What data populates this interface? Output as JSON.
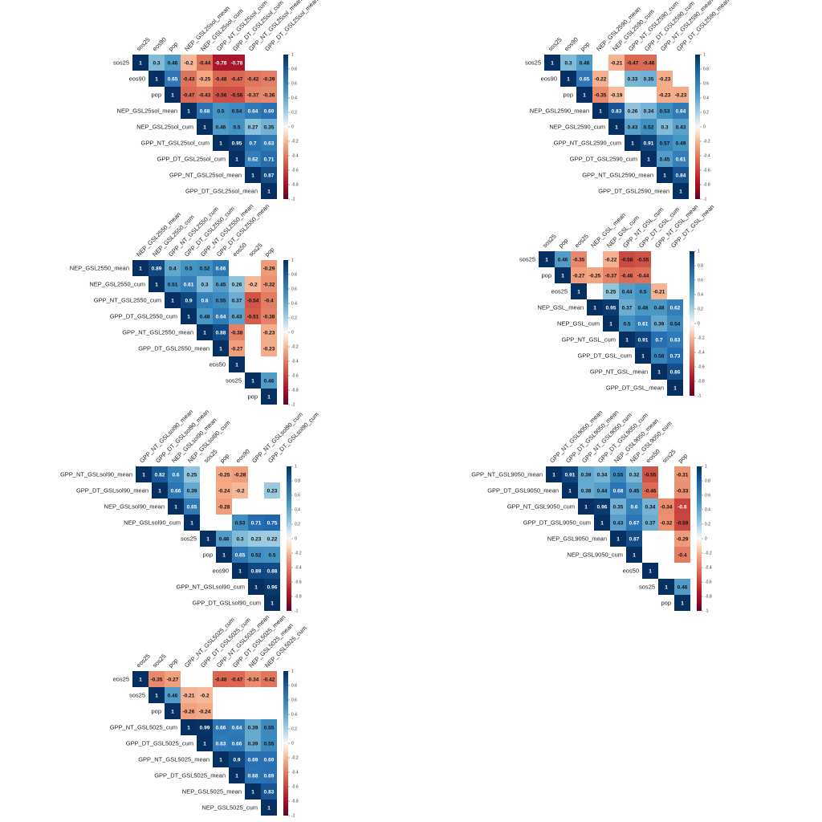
{
  "chart_data": [
    {
      "type": "heatmap",
      "labels": [
        "sos25",
        "eos90",
        "pop",
        "NEP_GSL25sol_mean",
        "NEP_GSL25sol_cum",
        "GPP_NT_GSL25sol_cum",
        "GPP_DT_GSL25sol_cum",
        "GPP_NT_GSL25sol_mean",
        "GPP_DT_GSL25sol_mean"
      ],
      "col_labels": [
        "sos25",
        "eos90",
        "pop",
        "NEP_GSL25sol_mean",
        "NEP_GSL25sol_cum",
        "GPP_NT_GSL25sol_cum",
        "GPP_DT_GSL25sol_cum",
        "GPP_NT_GSL25sol_mean",
        "GPP_DT_GSL25sol_mean"
      ],
      "matrix": [
        [
          1,
          0.3,
          0.46,
          -0.2,
          -0.44,
          -0.78,
          -0.78,
          null,
          null
        ],
        [
          null,
          1,
          0.65,
          -0.43,
          -0.25,
          -0.48,
          -0.47,
          -0.42,
          -0.39
        ],
        [
          null,
          null,
          1,
          -0.47,
          -0.43,
          -0.56,
          -0.56,
          -0.37,
          -0.36
        ],
        [
          null,
          null,
          null,
          1,
          0.68,
          0.5,
          0.54,
          0.64,
          0.69
        ],
        [
          null,
          null,
          null,
          null,
          1,
          0.46,
          0.5,
          0.27,
          0.35
        ],
        [
          null,
          null,
          null,
          null,
          null,
          1,
          0.95,
          0.7,
          0.63
        ],
        [
          null,
          null,
          null,
          null,
          null,
          null,
          1,
          0.62,
          0.71
        ],
        [
          null,
          null,
          null,
          null,
          null,
          null,
          null,
          1,
          0.87
        ],
        [
          null,
          null,
          null,
          null,
          null,
          null,
          null,
          null,
          1
        ]
      ],
      "colorbar_ticks": [
        1,
        0.8,
        0.6,
        0.4,
        0.2,
        0,
        -0.2,
        -0.4,
        -0.6,
        -0.8,
        -1
      ]
    },
    {
      "type": "heatmap",
      "labels": [
        "sos25",
        "eos90",
        "pop",
        "NEP_GSL2590_mean",
        "NEP_GSL2590_cum",
        "GPP_NT_GSL2590_cum",
        "GPP_DT_GSL2590_cum",
        "GPP_NT_GSL2590_mean",
        "GPP_DT_GSL2590_mean"
      ],
      "col_labels": [
        "sos25",
        "eos90",
        "pop",
        "NEP_GSL2590_mean",
        "NEP_GSL2590_cum",
        "GPP_NT_GSL2590_cum",
        "GPP_DT_GSL2590_cum",
        "GPP_NT_GSL2590_mean",
        "GPP_DT_GSL2590_mean"
      ],
      "matrix": [
        [
          1,
          0.3,
          0.46,
          null,
          -0.21,
          -0.47,
          -0.46,
          null,
          null
        ],
        [
          null,
          1,
          0.65,
          -0.22,
          null,
          0.33,
          0.35,
          -0.23,
          null
        ],
        [
          null,
          null,
          1,
          -0.35,
          -0.19,
          null,
          null,
          -0.23,
          -0.23
        ],
        [
          null,
          null,
          null,
          1,
          0.83,
          0.26,
          0.34,
          0.53,
          0.64
        ],
        [
          null,
          null,
          null,
          null,
          1,
          0.43,
          0.52,
          0.3,
          0.43
        ],
        [
          null,
          null,
          null,
          null,
          null,
          1,
          0.91,
          0.57,
          0.49
        ],
        [
          null,
          null,
          null,
          null,
          null,
          null,
          1,
          0.45,
          0.61
        ],
        [
          null,
          null,
          null,
          null,
          null,
          null,
          null,
          1,
          0.84
        ],
        [
          null,
          null,
          null,
          null,
          null,
          null,
          null,
          null,
          1
        ]
      ],
      "colorbar_ticks": [
        1,
        0.8,
        0.6,
        0.4,
        0.2,
        0,
        -0.2,
        -0.4,
        -0.6,
        -0.8,
        -1
      ]
    },
    {
      "type": "heatmap",
      "labels": [
        "NEP_GSL2550_mean",
        "NEP_GSL2550_cum",
        "GPP_NT_GSL2550_cum",
        "GPP_DT_GSL2550_cum",
        "GPP_NT_GSL2550_mean",
        "GPP_DT_GSL2550_mean",
        "eos50",
        "sos25",
        "pop"
      ],
      "col_labels": [
        "NEP_GSL2550_mean",
        "NEP_GSL2550_cum",
        "GPP_NT_GSL2550_cum",
        "GPP_DT_GSL2550_cum",
        "GPP_NT_GSL2550_mean",
        "GPP_DT_GSL2550_mean",
        "eos50",
        "sos25",
        "pop"
      ],
      "matrix": [
        [
          1,
          0.89,
          0.4,
          0.5,
          0.52,
          0.66,
          null,
          null,
          -0.29
        ],
        [
          null,
          1,
          0.51,
          0.61,
          0.3,
          0.45,
          0.26,
          -0.2,
          -0.32
        ],
        [
          null,
          null,
          1,
          0.9,
          0.6,
          0.55,
          0.37,
          -0.54,
          -0.4
        ],
        [
          null,
          null,
          null,
          1,
          0.48,
          0.64,
          0.43,
          -0.51,
          -0.38
        ],
        [
          null,
          null,
          null,
          null,
          1,
          0.88,
          -0.38,
          null,
          -0.23
        ],
        [
          null,
          null,
          null,
          null,
          null,
          1,
          -0.27,
          null,
          -0.23
        ],
        [
          null,
          null,
          null,
          null,
          null,
          null,
          1,
          null,
          null
        ],
        [
          null,
          null,
          null,
          null,
          null,
          null,
          null,
          1,
          0.46
        ],
        [
          null,
          null,
          null,
          null,
          null,
          null,
          null,
          null,
          1
        ]
      ],
      "colorbar_ticks": [
        1,
        0.8,
        0.6,
        0.4,
        0.2,
        0,
        -0.2,
        -0.4,
        -0.6,
        -0.8,
        -1
      ]
    },
    {
      "type": "heatmap",
      "labels": [
        "sos25",
        "pop",
        "eos25",
        "NEP_GSL_mean",
        "NEP_GSL_cum",
        "GPP_NT_GSL_cum",
        "GPP_DT_GSL_cum",
        "GPP_NT_GSL_mean",
        "GPP_DT_GSL_mean"
      ],
      "col_labels": [
        "sos25",
        "pop",
        "eos25",
        "NEP_GSL_mean",
        "NEP_GSL_cum",
        "GPP_NT_GSL_cum",
        "GPP_DT_GSL_cum",
        "GPP_NT_GSL_mean",
        "GPP_DT_GSL_mean"
      ],
      "matrix": [
        [
          1,
          0.46,
          -0.35,
          null,
          -0.22,
          -0.58,
          -0.55,
          null,
          null
        ],
        [
          null,
          1,
          -0.27,
          -0.25,
          -0.37,
          -0.46,
          -0.44,
          null,
          null
        ],
        [
          null,
          null,
          1,
          null,
          0.25,
          0.44,
          0.5,
          -0.21,
          null
        ],
        [
          null,
          null,
          null,
          1,
          0.95,
          0.37,
          0.48,
          0.48,
          0.62
        ],
        [
          null,
          null,
          null,
          null,
          1,
          0.5,
          0.61,
          0.39,
          0.54
        ],
        [
          null,
          null,
          null,
          null,
          null,
          1,
          0.91,
          0.7,
          0.63
        ],
        [
          null,
          null,
          null,
          null,
          null,
          null,
          1,
          0.58,
          0.73
        ],
        [
          null,
          null,
          null,
          null,
          null,
          null,
          null,
          1,
          0.86
        ],
        [
          null,
          null,
          null,
          null,
          null,
          null,
          null,
          null,
          1
        ]
      ],
      "colorbar_ticks": [
        1,
        0.8,
        0.6,
        0.4,
        0.2,
        0,
        -0.2,
        -0.4,
        -0.6,
        -0.8,
        -1
      ]
    },
    {
      "type": "heatmap",
      "labels": [
        "GPP_NT_GSLsol90_mean",
        "GPP_DT_GSLsol90_mean",
        "NEP_GSLsol90_mean",
        "NEP_GSLsol90_cum",
        "sos25",
        "pop",
        "eos90",
        "GPP_NT_GSLsol90_cum",
        "GPP_DT_GSLsol90_cum"
      ],
      "col_labels": [
        "GPP_NT_GSLsol90_mean",
        "GPP_DT_GSLsol90_mean",
        "NEP_GSLsol90_mean",
        "NEP_GSLsol90_cum",
        "sos25",
        "pop",
        "eos90",
        "GPP_NT_GSLsol90_cum",
        "GPP_DT_GSLsol90_cum"
      ],
      "matrix": [
        [
          1,
          0.82,
          0.6,
          0.25,
          null,
          -0.25,
          -0.28,
          null,
          null
        ],
        [
          null,
          1,
          0.66,
          0.39,
          null,
          -0.24,
          -0.2,
          null,
          0.23
        ],
        [
          null,
          null,
          1,
          0.65,
          null,
          -0.28,
          null,
          null,
          null
        ],
        [
          null,
          null,
          null,
          1,
          null,
          null,
          0.53,
          0.71,
          0.75
        ],
        [
          null,
          null,
          null,
          null,
          1,
          0.46,
          0.3,
          0.23,
          0.22
        ],
        [
          null,
          null,
          null,
          null,
          null,
          1,
          0.65,
          0.52,
          0.5
        ],
        [
          null,
          null,
          null,
          null,
          null,
          null,
          1,
          0.89,
          0.88
        ],
        [
          null,
          null,
          null,
          null,
          null,
          null,
          null,
          1,
          0.96
        ],
        [
          null,
          null,
          null,
          null,
          null,
          null,
          null,
          null,
          1
        ]
      ],
      "colorbar_ticks": [
        1,
        0.8,
        0.6,
        0.4,
        0.2,
        0,
        -0.2,
        -0.4,
        -0.6,
        -0.8,
        -1
      ]
    },
    {
      "type": "heatmap",
      "labels": [
        "GPP_NT_GSL9050_mean",
        "GPP_DT_GSL9050_mean",
        "GPP_NT_GSL9050_cum",
        "GPP_DT_GSL9050_cum",
        "NEP_GSL9050_mean",
        "NEP_GSL9050_cum",
        "eos50",
        "sos25",
        "pop"
      ],
      "col_labels": [
        "GPP_NT_GSL9050_mean",
        "GPP_DT_GSL9050_mean",
        "GPP_NT_GSL9050_cum",
        "GPP_DT_GSL9050_cum",
        "NEP_GSL9050_mean",
        "NEP_GSL9050_cum",
        "eos50",
        "sos25",
        "pop"
      ],
      "matrix": [
        [
          1,
          0.91,
          0.39,
          0.34,
          0.55,
          0.32,
          -0.55,
          null,
          -0.31
        ],
        [
          null,
          1,
          0.38,
          0.44,
          0.68,
          0.45,
          -0.46,
          null,
          -0.33
        ],
        [
          null,
          null,
          1,
          0.96,
          0.35,
          0.6,
          0.34,
          -0.34,
          -0.6
        ],
        [
          null,
          null,
          null,
          1,
          0.43,
          0.67,
          0.37,
          -0.32,
          -0.59
        ],
        [
          null,
          null,
          null,
          null,
          1,
          0.87,
          null,
          null,
          -0.29
        ],
        [
          null,
          null,
          null,
          null,
          null,
          1,
          null,
          null,
          -0.4
        ],
        [
          null,
          null,
          null,
          null,
          null,
          null,
          1,
          null,
          null
        ],
        [
          null,
          null,
          null,
          null,
          null,
          null,
          null,
          1,
          0.46
        ],
        [
          null,
          null,
          null,
          null,
          null,
          null,
          null,
          null,
          1
        ]
      ],
      "colorbar_ticks": [
        1,
        0.8,
        0.6,
        0.4,
        0.2,
        0,
        -0.2,
        -0.4,
        -0.6,
        -0.8,
        -1
      ]
    },
    {
      "type": "heatmap",
      "labels": [
        "eos25",
        "sos25",
        "pop",
        "GPP_NT_GSL5025_cum",
        "GPP_DT_GSL5025_cum",
        "GPP_NT_GSL5025_mean",
        "GPP_DT_GSL5025_mean",
        "NEP_GSL5025_mean",
        "NEP_GSL5025_cum"
      ],
      "col_labels": [
        "eos25",
        "sos25",
        "pop",
        "GPP_NT_GSL5025_cum",
        "GPP_DT_GSL5025_cum",
        "GPP_NT_GSL5025_mean",
        "GPP_DT_GSL5025_mean",
        "NEP_GSL5025_mean",
        "NEP_GSL5025_cum"
      ],
      "matrix": [
        [
          1,
          -0.35,
          -0.27,
          null,
          null,
          -0.48,
          -0.47,
          -0.34,
          -0.42
        ],
        [
          null,
          1,
          0.46,
          -0.21,
          -0.2,
          null,
          null,
          null,
          null
        ],
        [
          null,
          null,
          1,
          -0.26,
          -0.24,
          null,
          null,
          null,
          null
        ],
        [
          null,
          null,
          null,
          1,
          0.99,
          0.66,
          0.64,
          0.39,
          0.55
        ],
        [
          null,
          null,
          null,
          null,
          1,
          0.63,
          0.66,
          0.39,
          0.55
        ],
        [
          null,
          null,
          null,
          null,
          null,
          1,
          0.9,
          0.69,
          0.69
        ],
        [
          null,
          null,
          null,
          null,
          null,
          null,
          1,
          0.68,
          0.69
        ],
        [
          null,
          null,
          null,
          null,
          null,
          null,
          null,
          1,
          0.83
        ],
        [
          null,
          null,
          null,
          null,
          null,
          null,
          null,
          null,
          1
        ]
      ],
      "colorbar_ticks": [
        1,
        0.8,
        0.6,
        0.4,
        0.2,
        0,
        -0.2,
        -0.4,
        -0.6,
        -0.8,
        -1
      ]
    }
  ]
}
